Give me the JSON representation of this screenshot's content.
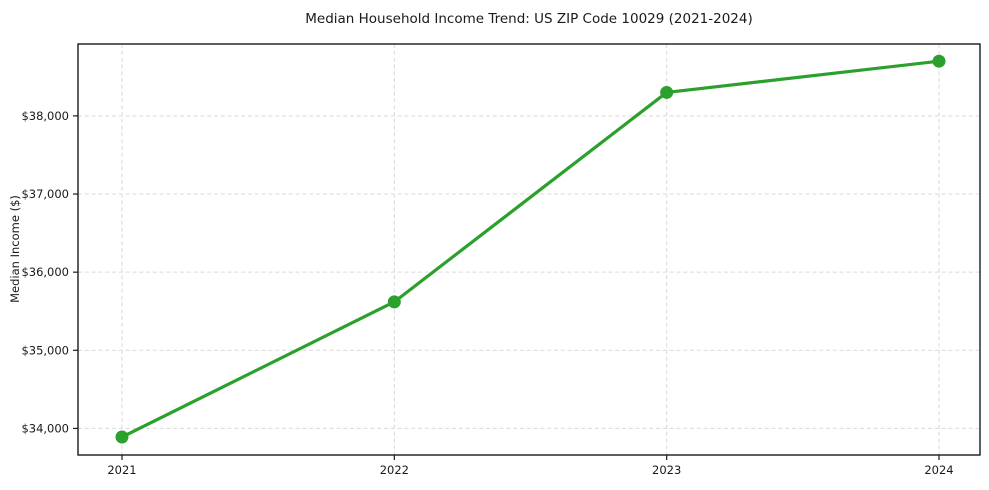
{
  "chart_data": {
    "type": "line",
    "title": "Median Household Income Trend: US ZIP Code 10029 (2021-2024)",
    "xlabel": "",
    "ylabel": "Median Income ($)",
    "categories": [
      "2021",
      "2022",
      "2023",
      "2024"
    ],
    "series": [
      {
        "name": "Median Household Income",
        "values": [
          33890,
          35620,
          38300,
          38700
        ]
      }
    ],
    "yticks": [
      34000,
      35000,
      36000,
      37000,
      38000
    ],
    "ytick_labels": [
      "$34,000",
      "$35,000",
      "$36,000",
      "$37,000",
      "$38,000"
    ],
    "ylim": [
      33660,
      38920
    ],
    "grid": true,
    "grid_style": "dashed",
    "legend": false,
    "colors": {
      "line": "#2ca02c",
      "marker": "#2ca02c",
      "grid": "#d9d9d9",
      "spine": "#1a1a1a",
      "text": "#1a1a1a",
      "background": "#ffffff"
    }
  }
}
